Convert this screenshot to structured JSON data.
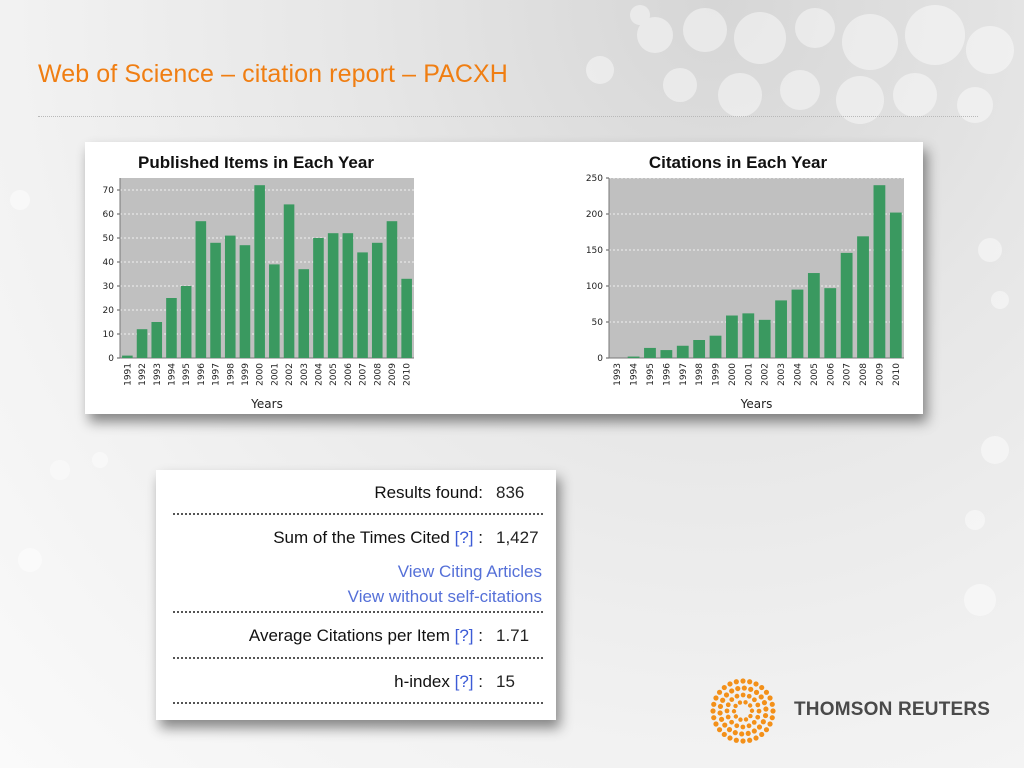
{
  "slide": {
    "title": "Web of Science – citation report – PACXH"
  },
  "colors": {
    "title": "#f07e12",
    "bar": "#3a9960",
    "plot_bg": "#c0c0c0",
    "link": "#5570d8",
    "logo_orange": "#f39019"
  },
  "stats": {
    "results_label": "Results found:",
    "results_value": "836",
    "sum_label": "Sum of the Times Cited",
    "sum_value": "1,427",
    "view_citing": "View Citing Articles",
    "view_without_self": "View without self-citations",
    "avg_label": "Average Citations per Item",
    "avg_value": "1.71",
    "h_label": "h-index",
    "h_value": "15",
    "help": "[?]",
    "colon": ":"
  },
  "logo": {
    "text": "THOMSON REUTERS",
    "icon": "thomson-reuters-dots-icon"
  },
  "chart_data": [
    {
      "type": "bar",
      "title": "Published Items in Each Year",
      "xlabel": "Years",
      "ylabel": "",
      "ylim": [
        0,
        75
      ],
      "yticks": [
        0,
        10,
        20,
        30,
        40,
        50,
        60,
        70
      ],
      "grid": true,
      "categories": [
        "1991",
        "1992",
        "1993",
        "1994",
        "1995",
        "1996",
        "1997",
        "1998",
        "1999",
        "2000",
        "2001",
        "2002",
        "2003",
        "2004",
        "2005",
        "2006",
        "2007",
        "2008",
        "2009",
        "2010"
      ],
      "values": [
        1,
        12,
        15,
        25,
        30,
        57,
        48,
        51,
        47,
        72,
        39,
        64,
        37,
        50,
        52,
        52,
        44,
        48,
        57,
        33
      ]
    },
    {
      "type": "bar",
      "title": "Citations in Each Year",
      "xlabel": "Years",
      "ylabel": "",
      "ylim": [
        0,
        250
      ],
      "yticks": [
        0,
        50,
        100,
        150,
        200,
        250
      ],
      "grid": true,
      "categories": [
        "1993",
        "1994",
        "1995",
        "1996",
        "1997",
        "1998",
        "1999",
        "2000",
        "2001",
        "2002",
        "2003",
        "2004",
        "2005",
        "2006",
        "2007",
        "2008",
        "2009",
        "2010"
      ],
      "values": [
        0,
        2,
        14,
        11,
        17,
        25,
        31,
        59,
        62,
        53,
        80,
        95,
        118,
        97,
        146,
        169,
        240,
        202
      ]
    }
  ]
}
